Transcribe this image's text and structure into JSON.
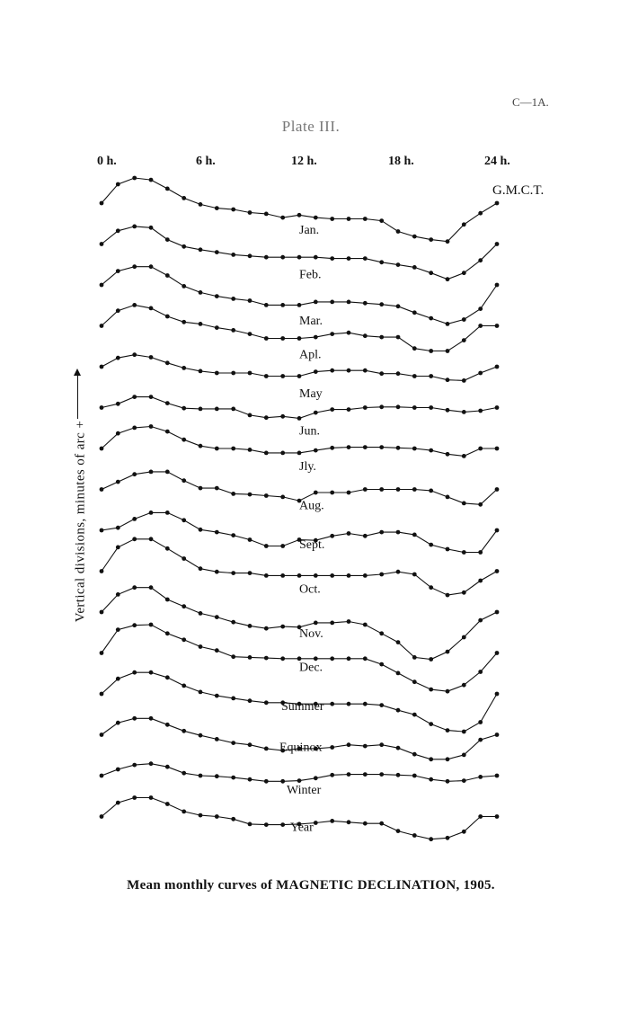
{
  "header": {
    "page_ref": "C—1A.",
    "plate_title": "Plate III."
  },
  "caption": "Mean monthly curves of MAGNETIC DECLINATION, 1905.",
  "chart_data": {
    "type": "line",
    "x_tick_labels": [
      "0 h.",
      "6 h.",
      "12 h.",
      "18 h.",
      "24 h."
    ],
    "x_unit_label": "G.M.C.T.",
    "ylabel": "Vertical divisions, minutes of arc  +",
    "x": [
      0,
      1,
      2,
      3,
      4,
      5,
      6,
      7,
      8,
      9,
      10,
      11,
      12,
      13,
      14,
      15,
      16,
      17,
      18,
      19,
      20,
      21,
      22,
      23,
      24
    ],
    "series": [
      {
        "name": "Jan.",
        "values": [
          0,
          3.0,
          4.0,
          3.7,
          2.3,
          0.8,
          -0.2,
          -0.8,
          -1.0,
          -1.5,
          -1.7,
          -2.3,
          -1.9,
          -2.3,
          -2.5,
          -2.5,
          -2.5,
          -2.8,
          -4.5,
          -5.3,
          -5.8,
          -6.1,
          -3.4,
          -1.6,
          0
        ]
      },
      {
        "name": "Feb.",
        "values": [
          0,
          2.1,
          2.8,
          2.6,
          0.7,
          -0.4,
          -0.9,
          -1.3,
          -1.7,
          -1.9,
          -2.1,
          -2.1,
          -2.1,
          -2.1,
          -2.3,
          -2.3,
          -2.3,
          -2.9,
          -3.3,
          -3.7,
          -4.6,
          -5.6,
          -4.6,
          -2.6,
          0
        ]
      },
      {
        "name": "Mar.",
        "values": [
          0,
          2.2,
          2.9,
          2.9,
          1.5,
          -0.2,
          -1.2,
          -1.8,
          -2.2,
          -2.5,
          -3.2,
          -3.2,
          -3.2,
          -2.7,
          -2.7,
          -2.7,
          -2.9,
          -3.1,
          -3.4,
          -4.4,
          -5.3,
          -6.2,
          -5.5,
          -3.8,
          0
        ]
      },
      {
        "name": "Apl.",
        "values": [
          0,
          2.4,
          3.3,
          2.8,
          1.5,
          0.6,
          0.3,
          -0.3,
          -0.7,
          -1.3,
          -2.0,
          -2.0,
          -2.0,
          -1.8,
          -1.3,
          -1.1,
          -1.6,
          -1.8,
          -1.8,
          -3.6,
          -4.0,
          -4.0,
          -2.3,
          0,
          0
        ]
      },
      {
        "name": "May",
        "values": [
          0,
          1.4,
          1.9,
          1.5,
          0.6,
          -0.2,
          -0.7,
          -1.0,
          -1.0,
          -1.0,
          -1.5,
          -1.5,
          -1.5,
          -0.8,
          -0.6,
          -0.6,
          -0.6,
          -1.1,
          -1.1,
          -1.5,
          -1.5,
          -2.1,
          -2.2,
          -1.0,
          0
        ]
      },
      {
        "name": "Jun.",
        "values": [
          0,
          0.6,
          1.7,
          1.7,
          0.7,
          -0.1,
          -0.2,
          -0.2,
          -0.2,
          -1.2,
          -1.6,
          -1.4,
          -1.7,
          -0.8,
          -0.3,
          -0.3,
          0,
          0.1,
          0.1,
          0,
          0,
          -0.4,
          -0.7,
          -0.5,
          0
        ]
      },
      {
        "name": "Jly.",
        "values": [
          0,
          2.4,
          3.3,
          3.5,
          2.7,
          1.4,
          0.4,
          0,
          0,
          -0.2,
          -0.7,
          -0.7,
          -0.7,
          -0.3,
          0.1,
          0.2,
          0.2,
          0.2,
          0.1,
          0,
          -0.3,
          -0.9,
          -1.2,
          0,
          0
        ]
      },
      {
        "name": "Aug.",
        "values": [
          0,
          1.2,
          2.4,
          2.8,
          2.8,
          1.4,
          0.2,
          0.2,
          -0.7,
          -0.8,
          -1.0,
          -1.2,
          -1.8,
          -0.5,
          -0.5,
          -0.5,
          0,
          0,
          0,
          0,
          -0.2,
          -1.2,
          -2.2,
          -2.4,
          0
        ]
      },
      {
        "name": "Sept.",
        "values": [
          0,
          0.4,
          1.8,
          2.8,
          2.8,
          1.6,
          0.1,
          -0.3,
          -0.8,
          -1.5,
          -2.5,
          -2.5,
          -1.5,
          -1.6,
          -0.9,
          -0.5,
          -0.9,
          -0.3,
          -0.3,
          -0.7,
          -2.3,
          -3.0,
          -3.5,
          -3.5,
          0
        ]
      },
      {
        "name": "Oct.",
        "values": [
          0,
          3.8,
          5.1,
          5.1,
          3.6,
          2.0,
          0.4,
          -0.1,
          -0.3,
          -0.3,
          -0.7,
          -0.7,
          -0.7,
          -0.7,
          -0.7,
          -0.7,
          -0.7,
          -0.5,
          -0.1,
          -0.5,
          -2.6,
          -3.8,
          -3.4,
          -1.5,
          0
        ]
      },
      {
        "name": "Nov.",
        "values": [
          0,
          2.8,
          3.9,
          3.9,
          2.0,
          0.9,
          -0.2,
          -0.8,
          -1.6,
          -2.2,
          -2.6,
          -2.3,
          -2.4,
          -1.7,
          -1.7,
          -1.5,
          -2.0,
          -3.4,
          -4.8,
          -7.2,
          -7.5,
          -6.3,
          -4.0,
          -1.3,
          0
        ]
      },
      {
        "name": "Dec.",
        "values": [
          0,
          3.7,
          4.4,
          4.5,
          3.1,
          2.1,
          1.0,
          0.4,
          -0.6,
          -0.7,
          -0.8,
          -0.9,
          -0.9,
          -0.9,
          -0.9,
          -0.9,
          -0.9,
          -1.8,
          -3.2,
          -4.6,
          -5.8,
          -6.1,
          -5.1,
          -3.0,
          0
        ]
      },
      {
        "name": "Summer",
        "values": [
          0,
          2.4,
          3.4,
          3.4,
          2.6,
          1.3,
          0.3,
          -0.3,
          -0.7,
          -1.1,
          -1.4,
          -1.4,
          -1.6,
          -1.6,
          -1.6,
          -1.6,
          -1.6,
          -1.8,
          -2.6,
          -3.3,
          -4.8,
          -5.8,
          -6.0,
          -4.5,
          0
        ]
      },
      {
        "name": "Equinox",
        "values": [
          0,
          1.9,
          2.6,
          2.6,
          1.6,
          0.6,
          -0.1,
          -0.7,
          -1.3,
          -1.6,
          -2.2,
          -2.5,
          -2.2,
          -2.2,
          -2.0,
          -1.6,
          -1.8,
          -1.6,
          -2.1,
          -3.1,
          -3.9,
          -3.9,
          -3.2,
          -0.8,
          0
        ]
      },
      {
        "name": "Winter",
        "values": [
          0,
          1.0,
          1.7,
          1.9,
          1.4,
          0.4,
          0,
          -0.1,
          -0.3,
          -0.6,
          -0.9,
          -0.9,
          -0.8,
          -0.4,
          0.1,
          0.2,
          0.2,
          0.2,
          0.1,
          0,
          -0.6,
          -0.9,
          -0.8,
          -0.2,
          0
        ]
      },
      {
        "name": "Year",
        "values": [
          0,
          2.2,
          3.0,
          3.0,
          2.0,
          0.8,
          0.2,
          0,
          -0.4,
          -1.2,
          -1.3,
          -1.3,
          -1.2,
          -1.0,
          -0.7,
          -0.9,
          -1.1,
          -1.1,
          -2.3,
          -3.0,
          -3.6,
          -3.4,
          -2.4,
          0,
          0
        ]
      }
    ]
  }
}
